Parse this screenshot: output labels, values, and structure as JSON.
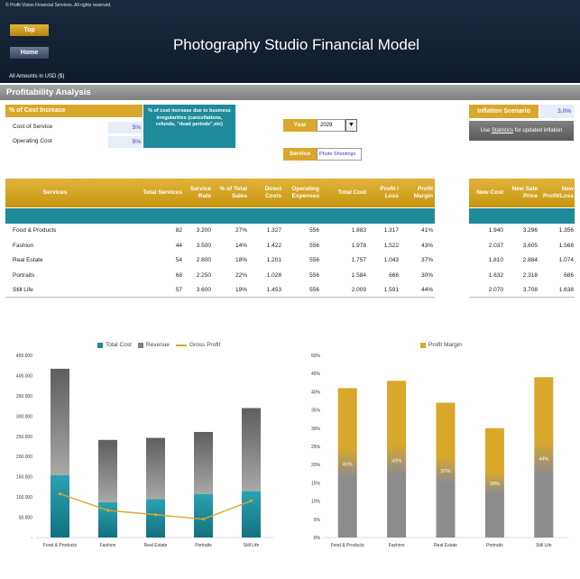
{
  "header": {
    "copyright": "© Profit Vision Financial Services. All rights reserved.",
    "title": "Photography Studio Financial Model",
    "top_button": "Top",
    "home_button": "Home",
    "amounts_note": "All Amounts in  USD ($)"
  },
  "section": {
    "title": "Profitability Analysis"
  },
  "cost_increase": {
    "heading": "% of Cost Increase",
    "rows": [
      {
        "label": "Cost of Service",
        "value": "5%"
      },
      {
        "label": "Operating Cost",
        "value": "5%"
      }
    ]
  },
  "note": {
    "text": "% of cost increase due to business irregularities (cancellations, refunds, \"dead periods\",etc)"
  },
  "year": {
    "label": "Year",
    "value": "2029",
    "dropdown_icon": "▼"
  },
  "service": {
    "label": "Service",
    "value": "Photo Shootings"
  },
  "inflation": {
    "label": "Inflation Scenario",
    "value": "3,0%",
    "button_prefix": "Use ",
    "button_link": "Statistics",
    "button_suffix": " for updated inflation"
  },
  "table": {
    "headers": [
      "Services",
      "Total Services",
      "Service Rate",
      "% of Total Sales",
      "Direct Costs",
      "Operating Expenses",
      "Total Cost",
      "Profit / Loss",
      "Profit Margin"
    ],
    "right_headers": [
      "New Cost",
      "New Sale Price",
      "New Profit/Loss"
    ],
    "rows": [
      {
        "name": "Food & Products",
        "total": "82",
        "rate": "3.200",
        "pct": "27%",
        "direct": "1.327",
        "opex": "556",
        "cost": "1.883",
        "profit": "1.317",
        "margin": "41%",
        "new_cost": "1.940",
        "new_price": "3.296",
        "new_profit": "1.356"
      },
      {
        "name": "Fashion",
        "total": "44",
        "rate": "3.500",
        "pct": "14%",
        "direct": "1.422",
        "opex": "556",
        "cost": "1.978",
        "profit": "1.522",
        "margin": "43%",
        "new_cost": "2.037",
        "new_price": "3.605",
        "new_profit": "1.568"
      },
      {
        "name": "Real Estate",
        "total": "54",
        "rate": "2.800",
        "pct": "18%",
        "direct": "1.201",
        "opex": "556",
        "cost": "1.757",
        "profit": "1.043",
        "margin": "37%",
        "new_cost": "1.810",
        "new_price": "2.884",
        "new_profit": "1.074"
      },
      {
        "name": "Portraits",
        "total": "68",
        "rate": "2.250",
        "pct": "22%",
        "direct": "1.028",
        "opex": "556",
        "cost": "1.584",
        "profit": "666",
        "margin": "30%",
        "new_cost": "1.632",
        "new_price": "2.318",
        "new_profit": "686"
      },
      {
        "name": "Still Life",
        "total": "57",
        "rate": "3.600",
        "pct": "19%",
        "direct": "1.453",
        "opex": "556",
        "cost": "2.009",
        "profit": "1.591",
        "margin": "44%",
        "new_cost": "2.070",
        "new_price": "3.708",
        "new_profit": "1.638"
      }
    ]
  },
  "colors": {
    "gold": "#d9a82a",
    "teal": "#1f8a9a",
    "gray": "#808080",
    "navy": "#0f1b2a"
  },
  "chart_data": [
    {
      "type": "bar",
      "stacked": true,
      "categories": [
        "Food & Products",
        "Fashion",
        "Real Estate",
        "Portraits",
        "Still Life"
      ],
      "series": [
        {
          "name": "Total Cost",
          "values": [
            154406,
            87032,
            94878,
            107712,
            114513
          ]
        },
        {
          "name": "Revenue",
          "values": [
            262400,
            154000,
            151200,
            153000,
            205200
          ]
        },
        {
          "name": "Gross Profit",
          "type": "line",
          "values": [
            107994,
            66968,
            56322,
            45288,
            90687
          ]
        }
      ],
      "yticks": [
        "-",
        "50.000",
        "100.000",
        "150.000",
        "200.000",
        "250.000",
        "300.000",
        "350.000",
        "400.000",
        "450.000"
      ],
      "ylim": [
        0,
        450000
      ],
      "legend": "top"
    },
    {
      "type": "bar",
      "categories": [
        "Food & Products",
        "Fashion",
        "Real Estate",
        "Portraits",
        "Still Life"
      ],
      "series": [
        {
          "name": "Profit Margin",
          "values": [
            41,
            43,
            37,
            30,
            44
          ],
          "labels": [
            "41%",
            "43%",
            "37%",
            "30%",
            "44%"
          ]
        }
      ],
      "yticks": [
        "0%",
        "5%",
        "10%",
        "15%",
        "20%",
        "25%",
        "30%",
        "35%",
        "40%",
        "45%",
        "50%"
      ],
      "ylim": [
        0,
        50
      ],
      "legend": "top"
    }
  ]
}
